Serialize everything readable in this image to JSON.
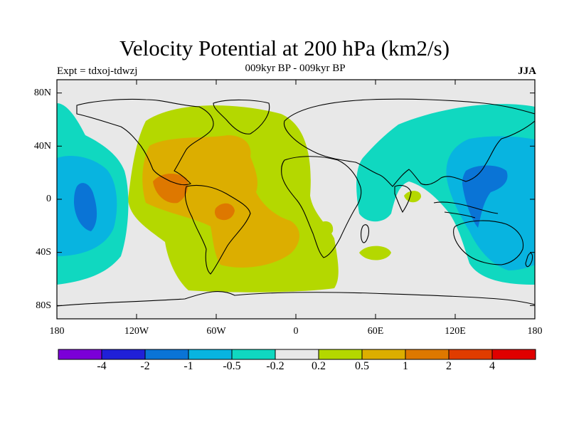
{
  "title": "Velocity Potential at 200 hPa (km2/s)",
  "subtitle": "009kyr BP - 009kyr BP",
  "experiment": "Expt = tdxoj-tdwzj",
  "season": "JJA",
  "map": {
    "lon_range": [
      -180,
      180
    ],
    "lat_range": [
      -90,
      90
    ],
    "lat_ticks": [
      "80N",
      "40N",
      "0",
      "40S",
      "80S"
    ],
    "lon_ticks": [
      "180",
      "120W",
      "60W",
      "0",
      "60E",
      "120E",
      "180"
    ],
    "background_color": "#e8e8e8"
  },
  "colorbar": {
    "colors": [
      "#7b00d8",
      "#2020d8",
      "#0a74d6",
      "#08b4e0",
      "#10d8c0",
      "#e8e8e8",
      "#b4d800",
      "#dcae00",
      "#de7800",
      "#e03c00",
      "#e00000"
    ],
    "labels": [
      "-4",
      "-2",
      "-1",
      "-0.5",
      "-0.2",
      "0.2",
      "0.5",
      "1",
      "2",
      "4"
    ]
  }
}
